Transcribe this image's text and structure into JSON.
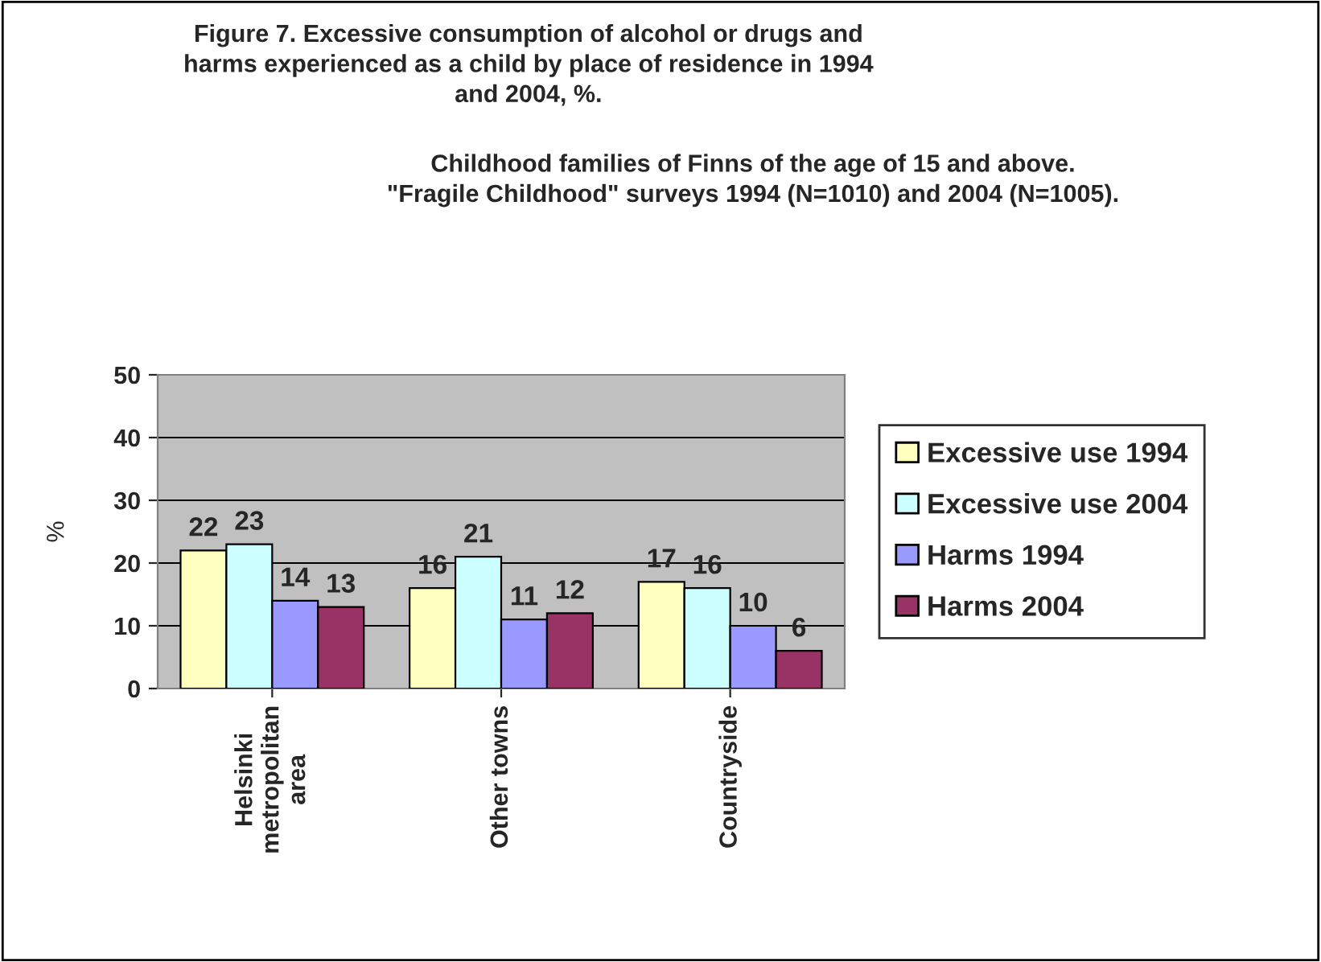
{
  "chart_data": {
    "type": "bar",
    "title": "Figure 7. Excessive consumption of alcohol or drugs and\nharms experienced as a child by place of residence in 1994\nand 2004, %.",
    "subtitle": "Childhood families of Finns of the age of 15 and above.\n\"Fragile Childhood\" surveys 1994 (N=1010) and 2004 (N=1005).",
    "ylabel": "%",
    "categories": [
      "Helsinki\nmetropolitan\narea",
      "Other towns",
      "Countryside"
    ],
    "series": [
      {
        "name": "Excessive use 1994",
        "color": "#ffffc0",
        "values": [
          22,
          16,
          17
        ]
      },
      {
        "name": "Excessive use 2004",
        "color": "#ccffff",
        "values": [
          23,
          21,
          16
        ]
      },
      {
        "name": "Harms 1994",
        "color": "#9999ff",
        "values": [
          14,
          11,
          10
        ]
      },
      {
        "name": "Harms 2004",
        "color": "#993366",
        "values": [
          13,
          12,
          6
        ]
      }
    ],
    "ylim": [
      0,
      50
    ],
    "yticks": [
      0,
      10,
      20,
      30,
      40,
      50
    ],
    "grid": "y",
    "legend": "right",
    "data_labels": true
  }
}
